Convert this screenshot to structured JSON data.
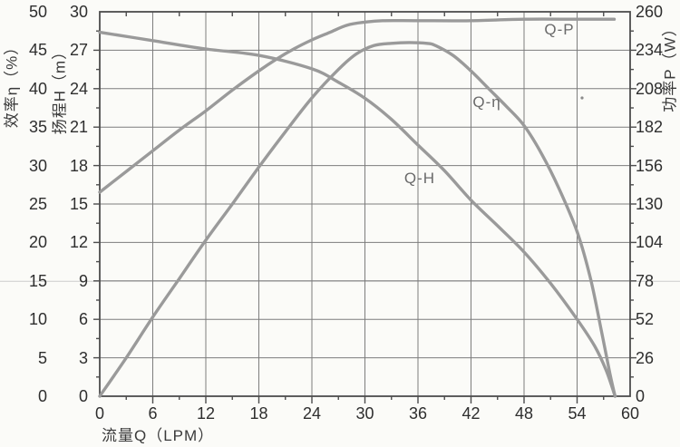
{
  "chart_data": {
    "type": "line",
    "title": "",
    "grid": "on",
    "colors": {
      "curve": "#9a9a9a",
      "grid": "#7d7d7d",
      "border": "#4d4d4d",
      "text": "#2e2e2e",
      "curve_label": "#6a6a6a",
      "artifact_line": "#cccccc"
    },
    "x_axis": {
      "label": "流量Q（LPM）",
      "min": 0,
      "max": 60,
      "tick_labels": [
        0,
        6,
        12,
        18,
        24,
        30,
        36,
        42,
        48,
        54,
        60
      ],
      "minor_step": 3
    },
    "y_axis_efficiency": {
      "label": "效率η（%）",
      "min": 0,
      "max": 50,
      "tick_labels": [
        0,
        5,
        10,
        15,
        20,
        25,
        30,
        35,
        40,
        45,
        50
      ]
    },
    "y_axis_head": {
      "label": "扬程H（m）",
      "min": 0,
      "max": 30,
      "tick_labels": [
        0,
        3,
        6,
        9,
        12,
        15,
        18,
        21,
        24,
        27,
        30
      ],
      "minor_step": 1.5
    },
    "y_axis_power": {
      "label": "功率P（W）",
      "min": 0,
      "max": 260,
      "tick_labels": [
        0,
        26,
        52,
        78,
        104,
        130,
        156,
        182,
        208,
        234,
        260
      ],
      "minor_step": 13
    },
    "series": [
      {
        "name": "Q-H",
        "unit": "m",
        "label_at": [
          36.2,
          17.0
        ],
        "points": [
          [
            0,
            28.4
          ],
          [
            6,
            27.75
          ],
          [
            12,
            27.1
          ],
          [
            18,
            26.6
          ],
          [
            24,
            25.55
          ],
          [
            27,
            24.5
          ],
          [
            30,
            23.25
          ],
          [
            33,
            21.6
          ],
          [
            36,
            19.6
          ],
          [
            39,
            17.6
          ],
          [
            42,
            15.3
          ],
          [
            45,
            13.3
          ],
          [
            48,
            11.25
          ],
          [
            51,
            8.8
          ],
          [
            54,
            6.0
          ],
          [
            56,
            3.9
          ],
          [
            57.3,
            2.0
          ],
          [
            58.3,
            0
          ]
        ]
      },
      {
        "name": "Q-η",
        "unit": "%",
        "label_at": [
          43.8,
          38.2
        ],
        "points": [
          [
            0,
            0
          ],
          [
            3,
            5.0
          ],
          [
            6,
            10.3
          ],
          [
            9,
            15.3
          ],
          [
            12,
            20.3
          ],
          [
            15,
            25.0
          ],
          [
            18,
            29.8
          ],
          [
            21,
            34.4
          ],
          [
            24,
            38.8
          ],
          [
            27,
            42.5
          ],
          [
            29,
            44.5
          ],
          [
            31,
            45.6
          ],
          [
            33,
            45.9
          ],
          [
            35,
            46.0
          ],
          [
            37,
            45.9
          ],
          [
            38,
            45.6
          ],
          [
            40,
            44.3
          ],
          [
            42,
            42.3
          ],
          [
            44,
            40.0
          ],
          [
            46,
            37.7
          ],
          [
            48,
            35.2
          ],
          [
            50,
            31.5
          ],
          [
            52,
            26.9
          ],
          [
            54,
            21.4
          ],
          [
            55.5,
            15.4
          ],
          [
            56.7,
            8.8
          ],
          [
            57.7,
            3.0
          ],
          [
            58.3,
            0
          ]
        ]
      },
      {
        "name": "Q-P",
        "unit": "W",
        "label_at": [
          52.0,
          248
        ],
        "points": [
          [
            0,
            138
          ],
          [
            3,
            152
          ],
          [
            6,
            166
          ],
          [
            9,
            180
          ],
          [
            12,
            193
          ],
          [
            15,
            207
          ],
          [
            18,
            220
          ],
          [
            20,
            228
          ],
          [
            22,
            235
          ],
          [
            24,
            241
          ],
          [
            26,
            246
          ],
          [
            28,
            251
          ],
          [
            30,
            253
          ],
          [
            32,
            254
          ],
          [
            36,
            254
          ],
          [
            42,
            254
          ],
          [
            48,
            255
          ],
          [
            54,
            255
          ],
          [
            58.2,
            255
          ]
        ]
      }
    ]
  }
}
